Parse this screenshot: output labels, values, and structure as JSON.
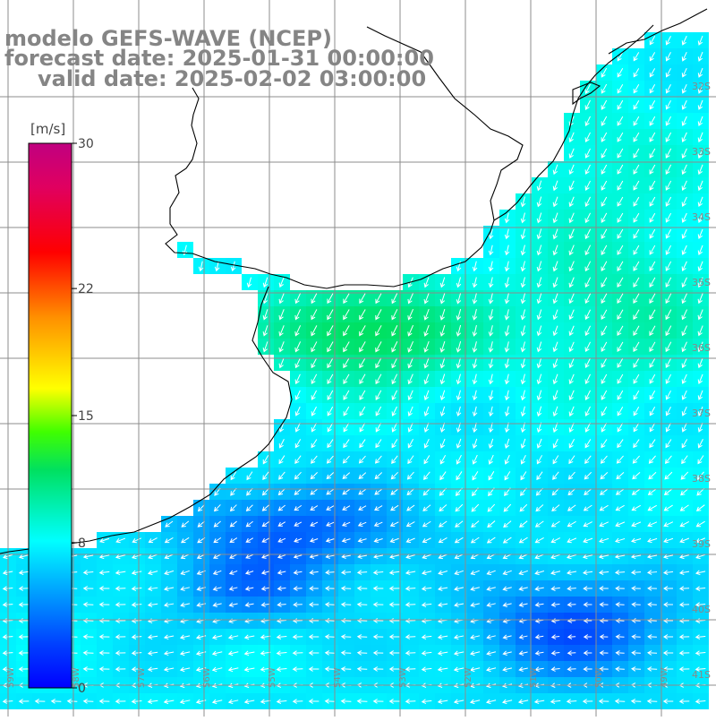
{
  "title": {
    "model": "modelo GEFS-WAVE (NCEP)",
    "forecast": "forecast date: 2025-01-31 00:00:00",
    "valid": "valid date: 2025-02-02 03:00:00"
  },
  "colorbar": {
    "unit": "[m/s]",
    "ticks": [
      "30",
      "22",
      "15",
      "8",
      "0"
    ],
    "tick_values": [
      30,
      22,
      15,
      8,
      0
    ],
    "range": [
      0,
      30
    ],
    "colors": [
      "#0000ff",
      "#0040ff",
      "#0090ff",
      "#00ffff",
      "#00e060",
      "#40ff00",
      "#ffff00",
      "#ff9000",
      "#ff0000",
      "#e00060",
      "#c00080"
    ]
  },
  "lat_labels": [
    "32S",
    "33S",
    "34S",
    "35S",
    "36S",
    "37S",
    "38S",
    "39S",
    "40S",
    "41S"
  ],
  "lon_labels": [
    "59W",
    "58W",
    "57W",
    "56W",
    "55W",
    "54W",
    "53W",
    "52W",
    "51W",
    "50W",
    "49W"
  ],
  "field": {
    "description_units": "wind speed m/s",
    "dominant_direction": "north-east wind (arrows toward south-west) in north; east wind (arrows toward west) in south"
  },
  "colors": {
    "title": "#858585",
    "land": "#ffffff",
    "grid": "#8c8c8c",
    "coast": "#000000",
    "arrows": "#ffffff"
  }
}
